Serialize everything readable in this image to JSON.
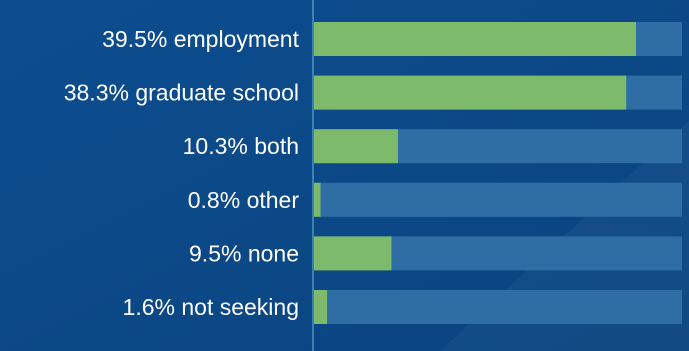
{
  "colors": {
    "background": "#0d4d8f",
    "background_shade": "#0a447f",
    "bar_track": "#2e6ea5",
    "bar_fill": "#7dba6c",
    "axis_line": "#4d94c4",
    "label_text": "#ffffff"
  },
  "chart_data": {
    "type": "bar",
    "orientation": "horizontal",
    "categories": [
      "39.5% employment",
      "38.3% graduate school",
      "10.3% both",
      "0.8% other",
      "9.5% none",
      "1.6% not seeking"
    ],
    "values": [
      39.5,
      38.3,
      10.3,
      0.8,
      9.5,
      1.6
    ],
    "xlim": [
      0,
      45
    ],
    "grid": false,
    "legend": "none",
    "title": "",
    "xlabel": "",
    "ylabel": ""
  }
}
